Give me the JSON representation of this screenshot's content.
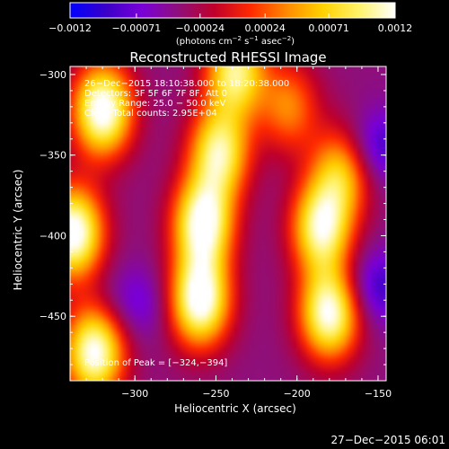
{
  "chart_data": {
    "type": "heatmap",
    "title": "Reconstructed RHESSI Image",
    "xlabel": "Heliocentric X (arcsec)",
    "ylabel": "Heliocentric Y (arcsec)",
    "xlim": [
      -340,
      -145
    ],
    "ylim": [
      -490,
      -295
    ],
    "x_ticks": [
      -300,
      -250,
      -200,
      -150
    ],
    "x_tick_labels": [
      "−300",
      "−250",
      "−200",
      "−150"
    ],
    "y_ticks": [
      -300,
      -350,
      -400,
      -450
    ],
    "y_tick_labels": [
      "−300",
      "−350",
      "−400",
      "−450"
    ],
    "colorbar": {
      "range": [
        -0.0012,
        0.0012
      ],
      "ticks": [
        -0.0012,
        -0.00071,
        -0.00024,
        0.00024,
        0.00071,
        0.0012
      ],
      "tick_labels": [
        "−0.0012",
        "−0.00071",
        "−0.00024",
        "0.00024",
        "0.00071",
        "0.0012"
      ],
      "units_label": "(photons cm",
      "units_exp1": "−2",
      "units_mid": " s",
      "units_exp2": "−1",
      "units_mid2": " asec",
      "units_exp3": "−2",
      "units_end": ")",
      "colormap": [
        "#0000ff",
        "#3a00c8",
        "#7a00d8",
        "#8f0f7a",
        "#c0002a",
        "#ff2a00",
        "#ff8a00",
        "#ffd200",
        "#fff36a",
        "#ffffff"
      ]
    },
    "annotations": {
      "time_range": "26−Dec−2015 18:10:38.000 to 18:20:38.000",
      "detectors": "Detectors: 3F 5F 6F 7F 8F, Att 0",
      "energy": "Energy Range: 25.0 − 50.0 keV",
      "clean": "Clean    Total counts: 2.95E+04",
      "peak": "Position of Peak = [−324,−394]"
    },
    "sources": [
      {
        "x": -320,
        "y": -322,
        "amp": 1.0
      },
      {
        "x": -338,
        "y": -398,
        "amp": 1.0
      },
      {
        "x": -325,
        "y": -472,
        "amp": 0.95
      },
      {
        "x": -260,
        "y": -440,
        "amp": 1.0
      },
      {
        "x": -258,
        "y": -392,
        "amp": 0.95
      },
      {
        "x": -248,
        "y": -348,
        "amp": 0.8
      },
      {
        "x": -238,
        "y": -298,
        "amp": 0.8
      },
      {
        "x": -205,
        "y": -320,
        "amp": 0.45
      },
      {
        "x": -180,
        "y": -448,
        "amp": 0.95
      },
      {
        "x": -185,
        "y": -395,
        "amp": 0.85
      },
      {
        "x": -173,
        "y": -360,
        "amp": 0.6
      }
    ],
    "background_level": 0.3,
    "negative_regions": [
      {
        "x": -150,
        "y": -345,
        "amp": 0.3
      },
      {
        "x": -150,
        "y": -432,
        "amp": 0.3
      },
      {
        "x": -300,
        "y": -442,
        "amp": 0.2
      }
    ]
  },
  "footer": {
    "timestamp": "27−Dec−2015 06:01"
  }
}
